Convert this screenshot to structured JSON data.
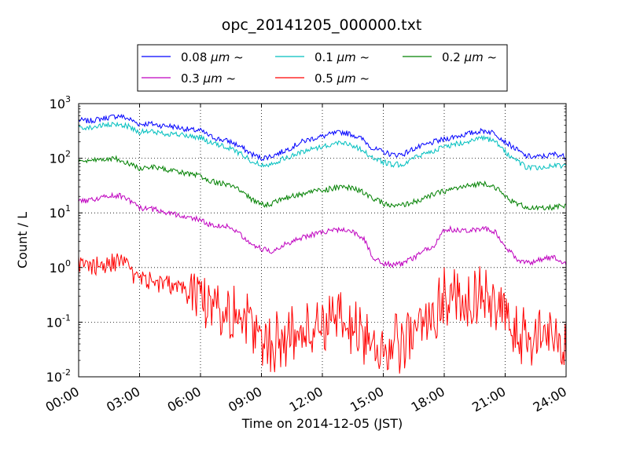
{
  "chart_data": {
    "type": "line",
    "title": "opc_20141205_000000.txt",
    "xlabel": "Time on 2014-12-05 (JST)",
    "ylabel": "Count / L",
    "yscale": "log",
    "ylim": [
      0.01,
      1000
    ],
    "xlim": [
      "00:00",
      "24:00"
    ],
    "x_ticks": [
      "00:00",
      "03:00",
      "06:00",
      "09:00",
      "12:00",
      "15:00",
      "18:00",
      "21:00",
      "24:00"
    ],
    "y_ticks": [
      {
        "base": "10",
        "exp": "-2",
        "value": 0.01
      },
      {
        "base": "10",
        "exp": "-1",
        "value": 0.1
      },
      {
        "base": "10",
        "exp": "0",
        "value": 1
      },
      {
        "base": "10",
        "exp": "1",
        "value": 10
      },
      {
        "base": "10",
        "exp": "2",
        "value": 100
      },
      {
        "base": "10",
        "exp": "3",
        "value": 1000
      }
    ],
    "grid": true,
    "legend_position": "top-center",
    "x_hours": [
      0,
      0.5,
      1,
      1.5,
      2,
      2.5,
      3,
      3.5,
      4,
      4.5,
      5,
      5.5,
      6,
      6.5,
      7,
      7.5,
      8,
      8.5,
      9,
      9.5,
      10,
      10.5,
      11,
      11.5,
      12,
      12.5,
      13,
      13.5,
      14,
      14.5,
      15,
      15.5,
      16,
      16.5,
      17,
      17.5,
      18,
      18.5,
      19,
      19.5,
      20,
      20.5,
      21,
      21.5,
      22,
      22.5,
      23,
      23.5,
      24
    ],
    "series": [
      {
        "name": "0.08 μm ~",
        "label_main": "0.08 ",
        "label_unit": "μm",
        "label_tail": " ~",
        "color": "#0000ff",
        "values": [
          500,
          480,
          520,
          560,
          600,
          520,
          420,
          430,
          400,
          390,
          360,
          330,
          320,
          250,
          220,
          200,
          160,
          120,
          100,
          110,
          130,
          160,
          200,
          230,
          250,
          280,
          300,
          270,
          220,
          150,
          130,
          115,
          120,
          150,
          170,
          200,
          220,
          250,
          270,
          300,
          320,
          290,
          200,
          150,
          110,
          105,
          110,
          120,
          105
        ]
      },
      {
        "name": "0.1 μm ~",
        "label_main": "0.1 ",
        "label_unit": "μm",
        "label_tail": " ~",
        "color": "#00bfbf",
        "values": [
          380,
          360,
          390,
          400,
          420,
          380,
          300,
          310,
          290,
          280,
          270,
          250,
          240,
          190,
          170,
          150,
          120,
          90,
          75,
          80,
          95,
          110,
          130,
          150,
          165,
          180,
          200,
          170,
          140,
          100,
          85,
          75,
          80,
          100,
          120,
          140,
          160,
          180,
          200,
          220,
          230,
          200,
          130,
          95,
          70,
          65,
          70,
          75,
          70
        ]
      },
      {
        "name": "0.2 μm ~",
        "label_main": "0.2 ",
        "label_unit": "μm",
        "label_tail": " ~",
        "color": "#008000",
        "values": [
          90,
          85,
          95,
          100,
          95,
          80,
          65,
          70,
          65,
          60,
          55,
          50,
          48,
          38,
          35,
          32,
          25,
          18,
          14,
          15,
          18,
          20,
          22,
          25,
          26,
          28,
          30,
          28,
          24,
          18,
          15,
          13,
          14,
          16,
          18,
          22,
          25,
          28,
          30,
          33,
          35,
          30,
          20,
          15,
          13,
          12,
          12,
          13,
          13
        ]
      },
      {
        "name": "0.3 μm ~",
        "label_main": "0.3 ",
        "label_unit": "μm",
        "label_tail": " ~",
        "color": "#bf00bf",
        "values": [
          16,
          17,
          19,
          20,
          21,
          17,
          12,
          12,
          11,
          10,
          9,
          8,
          7.5,
          6,
          5.8,
          5.5,
          4,
          2.8,
          2.2,
          2.0,
          2.5,
          3.0,
          3.5,
          4.0,
          4.5,
          4.7,
          5.0,
          4.5,
          3.5,
          1.5,
          1.2,
          1.1,
          1.2,
          1.5,
          2.0,
          2.5,
          5.0,
          5.0,
          4.8,
          5.0,
          5.2,
          4.5,
          2.5,
          1.5,
          1.2,
          1.3,
          1.5,
          1.5,
          1.2
        ]
      },
      {
        "name": "0.5 μm ~",
        "label_main": "0.5 ",
        "label_unit": "μm",
        "label_tail": " ~",
        "color": "#ff0000",
        "values": [
          1.2,
          1.0,
          1.1,
          1.2,
          1.3,
          0.9,
          0.6,
          0.6,
          0.5,
          0.5,
          0.4,
          0.3,
          0.3,
          0.25,
          0.2,
          0.15,
          0.15,
          0.08,
          0.05,
          0.04,
          0.05,
          0.06,
          0.06,
          0.08,
          0.1,
          0.1,
          0.1,
          0.08,
          0.06,
          0.04,
          0.03,
          0.04,
          0.04,
          0.05,
          0.1,
          0.15,
          0.3,
          0.3,
          0.25,
          0.3,
          0.3,
          0.2,
          0.1,
          0.07,
          0.05,
          0.05,
          0.06,
          0.06,
          0.05
        ]
      }
    ]
  }
}
